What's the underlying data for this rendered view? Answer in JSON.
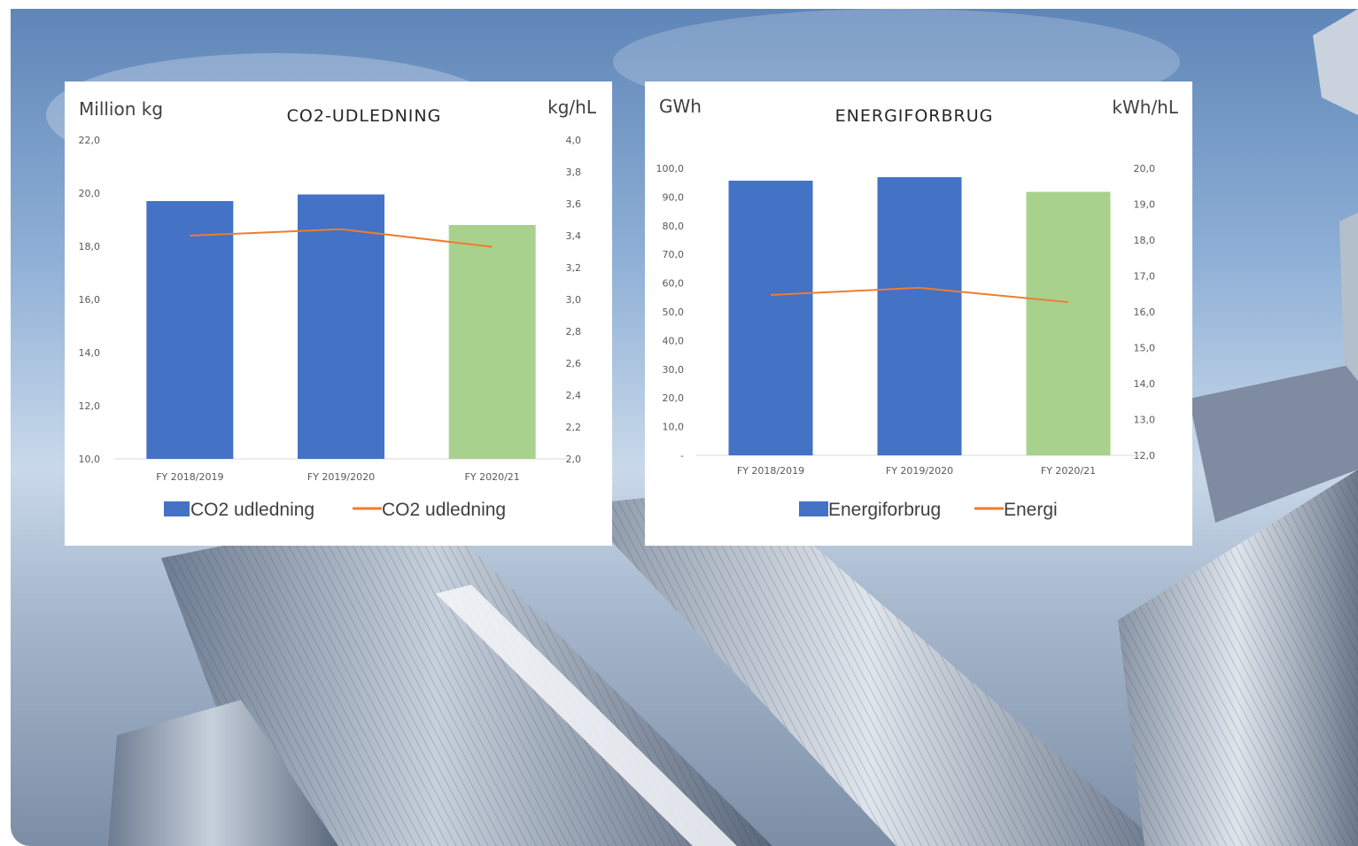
{
  "chart_data": [
    {
      "type": "bar",
      "title": "CO2-UDLEDNING",
      "y_left_unit": "Million kg",
      "y_right_unit": "kg/hL",
      "categories": [
        "FY 2018/2019",
        "FY 2019/2020",
        "FY 2020/21"
      ],
      "series": [
        {
          "name": "CO2 udledning",
          "kind": "bar",
          "axis": "left",
          "values": [
            19.7,
            19.95,
            18.8
          ],
          "colors": [
            "#4472c4",
            "#4472c4",
            "#a9d18e"
          ]
        },
        {
          "name": "CO2 udledning",
          "kind": "line",
          "axis": "right",
          "values": [
            3.4,
            3.44,
            3.33
          ],
          "color": "#ed7d31"
        }
      ],
      "ylim_left": [
        10,
        22
      ],
      "y_left_ticks": [
        "22,0",
        "20,0",
        "18,0",
        "16,0",
        "14,0",
        "12,0",
        "10,0"
      ],
      "ylim_right": [
        2,
        4
      ],
      "y_right_ticks": [
        "4,0",
        "3,8",
        "3,6",
        "3,4",
        "3,2",
        "3,0",
        "2,8",
        "2,6",
        "2,4",
        "2,2",
        "2,0"
      ],
      "legend": "bottom"
    },
    {
      "type": "bar",
      "title": "ENERGIFORBRUG",
      "y_left_unit": "GWh",
      "y_right_unit": "kWh/hL",
      "categories": [
        "FY 2018/2019",
        "FY 2019/2020",
        "FY 2020/21"
      ],
      "series": [
        {
          "name": "Energiforbrug",
          "kind": "bar",
          "axis": "left",
          "values": [
            95.7,
            96.9,
            91.8
          ],
          "colors": [
            "#4472c4",
            "#4472c4",
            "#a9d18e"
          ]
        },
        {
          "name": "Energi",
          "kind": "line",
          "axis": "right",
          "values": [
            16.47,
            16.67,
            16.27
          ],
          "color": "#ed7d31"
        }
      ],
      "ylim_left": [
        0,
        100
      ],
      "y_left_ticks": [
        "100,0",
        "90,0",
        "80,0",
        "70,0",
        "60,0",
        "50,0",
        "40,0",
        "30,0",
        "20,0",
        "10,0",
        "-"
      ],
      "ylim_right": [
        12,
        20
      ],
      "y_right_ticks": [
        "20,0",
        "19,0",
        "18,0",
        "17,0",
        "16,0",
        "15,0",
        "14,0",
        "13,0",
        "12,0"
      ],
      "legend": "bottom"
    }
  ]
}
